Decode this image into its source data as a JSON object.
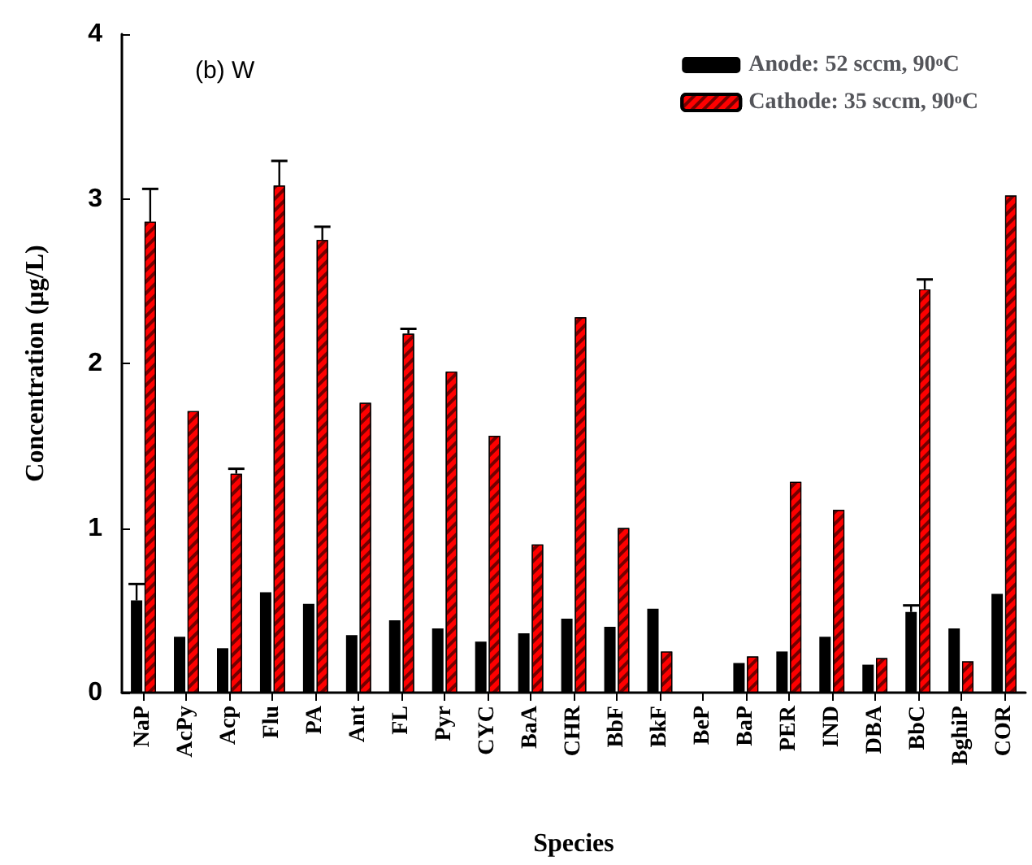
{
  "chart_data": {
    "type": "bar",
    "xlabel": "Species",
    "ylabel": "Concentration (µg/L)",
    "annotations": [
      "(b) W"
    ],
    "categories": [
      "NaP",
      "AcPy",
      "Acp",
      "Flu",
      "PA",
      "Ant",
      "FL",
      "Pyr",
      "CYC",
      "BaA",
      "CHR",
      "BbF",
      "BkF",
      "BeP",
      "BaP",
      "PER",
      "IND",
      "DBA",
      "BbC",
      "BghiP",
      "COR"
    ],
    "series": [
      {
        "name": "Anode: 52 sccm, 90$^{o}$C",
        "color": "#000000",
        "values": [
          0.56,
          0.34,
          0.27,
          0.61,
          0.54,
          0.35,
          0.44,
          0.39,
          0.31,
          0.36,
          0.45,
          0.4,
          0.51,
          null,
          0.18,
          0.25,
          0.34,
          0.17,
          0.49,
          0.39,
          0.6
        ],
        "errors": [
          0.1,
          null,
          null,
          null,
          null,
          null,
          null,
          null,
          null,
          null,
          null,
          null,
          null,
          null,
          null,
          null,
          null,
          null,
          0.04,
          null,
          null
        ]
      },
      {
        "name": "Cathode: 35 sccm, 90$^{o}$C",
        "color": "#ff0000",
        "values": [
          2.86,
          1.71,
          1.33,
          3.08,
          2.75,
          1.76,
          2.18,
          1.95,
          1.56,
          0.9,
          2.28,
          1.0,
          0.25,
          null,
          0.22,
          1.28,
          1.11,
          0.21,
          2.45,
          0.19,
          3.02
        ],
        "errors": [
          0.2,
          null,
          0.03,
          0.15,
          0.08,
          null,
          0.03,
          null,
          null,
          null,
          null,
          null,
          null,
          null,
          null,
          null,
          null,
          null,
          0.06,
          null,
          null
        ]
      }
    ],
    "ylim": [
      0,
      4
    ],
    "yticks": [
      0,
      1,
      2,
      3,
      4
    ],
    "grid": false,
    "legend": "top right"
  }
}
